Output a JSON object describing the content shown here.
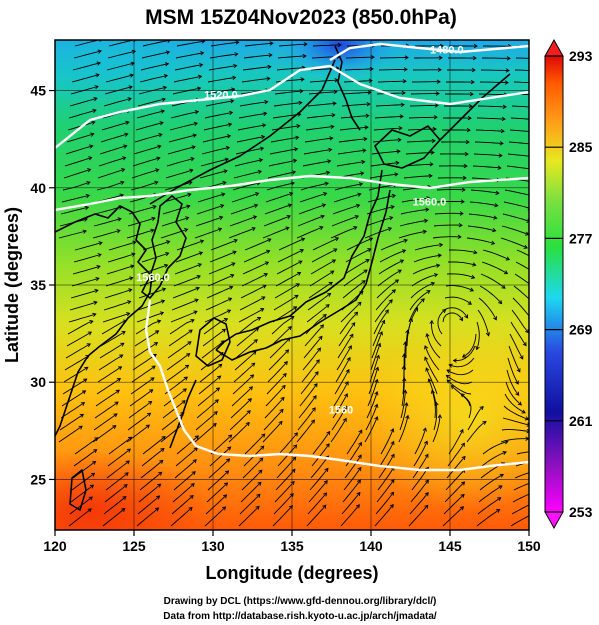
{
  "title": "MSM 15Z04Nov2023 (850.0hPa)",
  "map": {
    "xlabel": "Longitude (degrees)",
    "ylabel": "Latitude  (degrees)",
    "lon_range": [
      120,
      150
    ],
    "lat_range": [
      22.4,
      47.6
    ],
    "lon_ticks": [
      "120",
      "125",
      "130",
      "135",
      "140",
      "145",
      "150"
    ],
    "lat_ticks": [
      "25",
      "30",
      "35",
      "40",
      "45"
    ],
    "grid": true,
    "contours": [
      {
        "label": "1480.0",
        "lon": 144.8,
        "lat": 46.9
      },
      {
        "label": "1520.0",
        "lon": 130.5,
        "lat": 44.6
      },
      {
        "label": "1560.0",
        "lon": 143.7,
        "lat": 39.1
      },
      {
        "label": "1560.0",
        "lon": 126.2,
        "lat": 35.2
      },
      {
        "label": "1560",
        "lon": 138.1,
        "lat": 28.4
      }
    ]
  },
  "colorbar": {
    "ticks": [
      "293",
      "285",
      "277",
      "269",
      "261",
      "253"
    ],
    "min": 253,
    "max": 293,
    "colors": [
      "#ff00ff",
      "#1010a0",
      "#2848e0",
      "#1ed8f0",
      "#28e040",
      "#78e040",
      "#e8e820",
      "#ff9a18",
      "#ff5a00",
      "#e00808"
    ]
  },
  "credits": {
    "line1": "Drawing by DCL (https://www.gfd-dennou.org/library/dcl/)",
    "line2": "Data from http://database.rish.kyoto-u.ac.jp/arch/jmadata/"
  }
}
